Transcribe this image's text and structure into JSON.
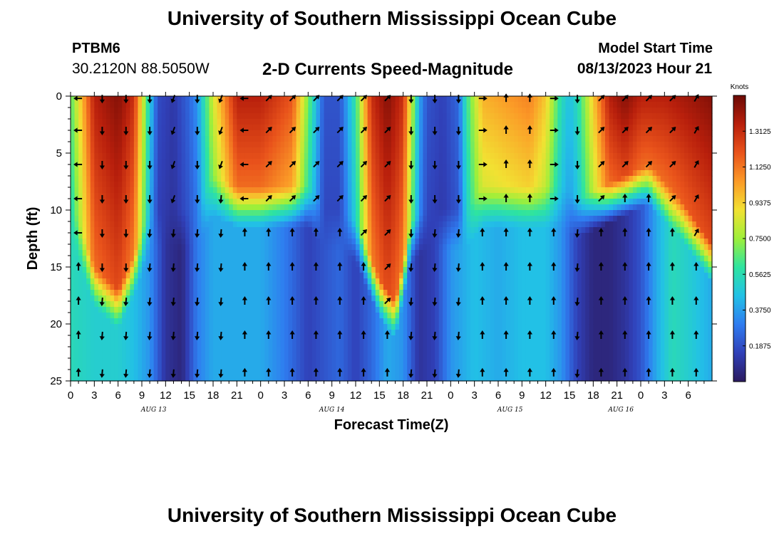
{
  "header": {
    "main_title": "University of Southern Mississippi Ocean Cube",
    "station_id": "PTBM6",
    "station_coords": "30.2120N  88.5050W",
    "chart_title": "2-D Currents Speed-Magnitude",
    "model_start_label": "Model Start Time",
    "model_start_value": "08/13/2023 Hour 21"
  },
  "footer": {
    "repeated_title": "University of Southern Mississippi Ocean Cube"
  },
  "chart_data": {
    "type": "heatmap",
    "title": "2-D Currents Speed-Magnitude",
    "xlabel": "Forecast Time(Z)",
    "ylabel": "Depth (ft)",
    "x_range_hours": [
      0,
      81
    ],
    "ylim": [
      0,
      25
    ],
    "y_inverted": true,
    "x_ticks": [
      "0",
      "3",
      "6",
      "9",
      "12",
      "15",
      "18",
      "21",
      "0",
      "3",
      "6",
      "9",
      "12",
      "15",
      "18",
      "21",
      "0",
      "3",
      "6",
      "9",
      "12",
      "15",
      "18",
      "21",
      "0",
      "3",
      "6"
    ],
    "y_ticks": [
      "0",
      "5",
      "10",
      "15",
      "20",
      "25"
    ],
    "date_labels": [
      {
        "text": "AUG 13",
        "hour": 10.5
      },
      {
        "text": "AUG 14",
        "hour": 33
      },
      {
        "text": "AUG 15",
        "hour": 55.5
      },
      {
        "text": "AUG 16",
        "hour": 69.5
      }
    ],
    "colorbar": {
      "title": "Knots",
      "range": [
        0,
        1.5
      ],
      "ticks": [
        "1.3125",
        "1.1250",
        "0.9375",
        "0.7500",
        "0.5625",
        "0.3750",
        "0.1875"
      ],
      "tick_values": [
        1.3125,
        1.125,
        0.9375,
        0.75,
        0.5625,
        0.375,
        0.1875
      ]
    },
    "speed_model": {
      "surface_knots_by_hour": [
        [
          0,
          0.65
        ],
        [
          3,
          1.35
        ],
        [
          6,
          1.45
        ],
        [
          8,
          1.3
        ],
        [
          10,
          0.5
        ],
        [
          11,
          0.18
        ],
        [
          13,
          0.12
        ],
        [
          15,
          0.25
        ],
        [
          16,
          0.35
        ],
        [
          18,
          0.85
        ],
        [
          21,
          1.35
        ],
        [
          24,
          1.35
        ],
        [
          28,
          1.2
        ],
        [
          31,
          0.45
        ],
        [
          32,
          0.2
        ],
        [
          34,
          0.2
        ],
        [
          36,
          0.6
        ],
        [
          38,
          1.3
        ],
        [
          40,
          1.45
        ],
        [
          42,
          1.3
        ],
        [
          44,
          0.4
        ],
        [
          45,
          0.2
        ],
        [
          47,
          0.15
        ],
        [
          49,
          0.25
        ],
        [
          50,
          0.6
        ],
        [
          52,
          1.0
        ],
        [
          55,
          1.05
        ],
        [
          58,
          1.1
        ],
        [
          60,
          0.95
        ],
        [
          62,
          0.55
        ],
        [
          63,
          0.45
        ],
        [
          64,
          0.55
        ],
        [
          66,
          0.95
        ],
        [
          68,
          1.35
        ],
        [
          70,
          1.45
        ],
        [
          72,
          1.35
        ],
        [
          75,
          1.35
        ],
        [
          78,
          1.4
        ],
        [
          81,
          1.45
        ]
      ],
      "cutoff_depth_ft_by_hour": [
        [
          0,
          9
        ],
        [
          3,
          15
        ],
        [
          6,
          17
        ],
        [
          8,
          14
        ],
        [
          10,
          10
        ],
        [
          12,
          10
        ],
        [
          14,
          10
        ],
        [
          16,
          10
        ],
        [
          18,
          7
        ],
        [
          21,
          8
        ],
        [
          26,
          8
        ],
        [
          30,
          8
        ],
        [
          32,
          10
        ],
        [
          34,
          10
        ],
        [
          36,
          11
        ],
        [
          39,
          16
        ],
        [
          41,
          18
        ],
        [
          43,
          11
        ],
        [
          45,
          10
        ],
        [
          47,
          10
        ],
        [
          50,
          10
        ],
        [
          52,
          8
        ],
        [
          58,
          8
        ],
        [
          62,
          8
        ],
        [
          64,
          9
        ],
        [
          67,
          8
        ],
        [
          70,
          7
        ],
        [
          73,
          6
        ],
        [
          77,
          9
        ],
        [
          80,
          12
        ],
        [
          81,
          13
        ]
      ],
      "bottom_knots_by_hour": [
        [
          0,
          0.55
        ],
        [
          3,
          0.5
        ],
        [
          6,
          0.5
        ],
        [
          8,
          0.45
        ],
        [
          10,
          0.35
        ],
        [
          12,
          0.1
        ],
        [
          14,
          0.05
        ],
        [
          16,
          0.3
        ],
        [
          18,
          0.4
        ],
        [
          21,
          0.4
        ],
        [
          24,
          0.4
        ],
        [
          27,
          0.3
        ],
        [
          30,
          0.15
        ],
        [
          32,
          0.2
        ],
        [
          34,
          0.25
        ],
        [
          36,
          0.15
        ],
        [
          38,
          0.25
        ],
        [
          40,
          0.4
        ],
        [
          42,
          0.35
        ],
        [
          44,
          0.1
        ],
        [
          46,
          0.15
        ],
        [
          48,
          0.35
        ],
        [
          51,
          0.45
        ],
        [
          54,
          0.4
        ],
        [
          57,
          0.45
        ],
        [
          60,
          0.45
        ],
        [
          62,
          0.35
        ],
        [
          64,
          0.15
        ],
        [
          66,
          0.05
        ],
        [
          68,
          0.05
        ],
        [
          70,
          0.1
        ],
        [
          72,
          0.2
        ],
        [
          74,
          0.4
        ],
        [
          76,
          0.55
        ],
        [
          78,
          0.5
        ],
        [
          81,
          0.4
        ]
      ]
    },
    "arrows": {
      "depths_ft": [
        0.2,
        3,
        6,
        9,
        12,
        15,
        18,
        21,
        24.3
      ],
      "hours": [
        1,
        4,
        7,
        10,
        13,
        16,
        19,
        22,
        25,
        28,
        31,
        34,
        37,
        40,
        43,
        46,
        49,
        52,
        55,
        58,
        61,
        64,
        67,
        70,
        73,
        76,
        79
      ],
      "direction_sequence_deg": [
        270,
        180,
        180,
        180,
        200,
        180,
        200,
        270,
        45,
        45,
        45,
        45,
        45,
        45,
        180,
        180,
        180,
        90,
        0,
        0,
        90,
        180,
        45,
        45,
        45,
        45,
        30
      ]
    }
  }
}
